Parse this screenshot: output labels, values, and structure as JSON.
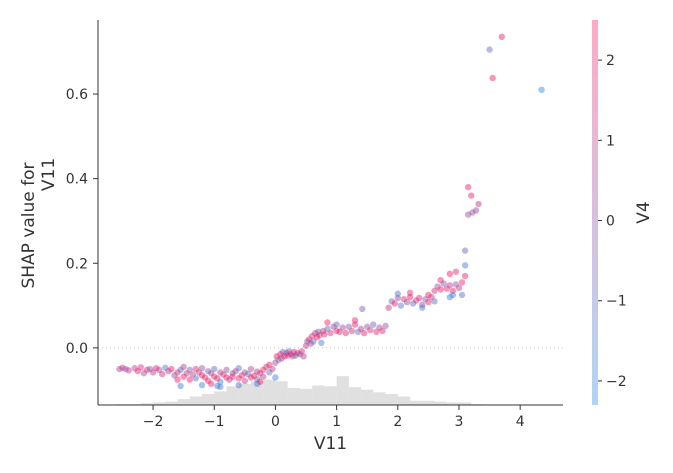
{
  "chart_data": {
    "type": "scatter",
    "subtype": "shap-dependence",
    "xlabel": "V11",
    "ylabel_lines": [
      "SHAP value for",
      "V11"
    ],
    "color_label": "V4",
    "xlim": [
      -2.9,
      4.7
    ],
    "ylim": [
      -0.135,
      0.775
    ],
    "xticks": [
      -2,
      -1,
      0,
      1,
      2,
      3,
      4
    ],
    "xtick_labels": [
      "−2",
      "−1",
      "0",
      "1",
      "2",
      "3",
      "4"
    ],
    "yticks": [
      0.0,
      0.2,
      0.4,
      0.6
    ],
    "ytick_labels": [
      "0.0",
      "0.2",
      "0.4",
      "0.6"
    ],
    "color_ticks": [
      -2,
      -1,
      0,
      1,
      2
    ],
    "color_tick_labels": [
      "−2",
      "−1",
      "0",
      "1",
      "2"
    ],
    "color_range": [
      -2.3,
      2.5
    ],
    "colors": {
      "low": "#1E88E5",
      "high": "#FF0D57",
      "axis": "#333333",
      "histogram": "#cccccc",
      "zero_line": "#888888"
    },
    "zero_line": {
      "y": 0.0,
      "style": "dotted"
    },
    "histogram": {
      "bin_edges": [
        -2.6,
        -2.4,
        -2.2,
        -2.0,
        -1.8,
        -1.6,
        -1.4,
        -1.2,
        -1.0,
        -0.8,
        -0.6,
        -0.4,
        -0.2,
        0.0,
        0.2,
        0.4,
        0.6,
        0.8,
        1.0,
        1.2,
        1.4,
        1.6,
        1.8,
        2.0,
        2.2,
        2.4,
        2.6,
        2.8,
        3.0,
        3.2,
        3.4
      ],
      "counts": [
        1,
        1,
        2,
        3,
        4,
        7,
        10,
        13,
        16,
        22,
        25,
        28,
        30,
        28,
        20,
        19,
        23,
        22,
        34,
        21,
        18,
        15,
        13,
        10,
        5,
        5,
        4,
        3,
        3,
        1
      ]
    },
    "points": [
      [
        -2.55,
        -0.05,
        0.3
      ],
      [
        -2.5,
        -0.047,
        2.0
      ],
      [
        -2.45,
        -0.05,
        -0.5
      ],
      [
        -2.4,
        -0.053,
        1.2
      ],
      [
        -2.3,
        -0.048,
        0.8
      ],
      [
        -2.25,
        -0.055,
        2.2
      ],
      [
        -2.2,
        -0.046,
        1.5
      ],
      [
        -2.15,
        -0.06,
        0.1
      ],
      [
        -2.1,
        -0.052,
        1.8
      ],
      [
        -2.05,
        -0.05,
        -0.3
      ],
      [
        -2.0,
        -0.058,
        1.0
      ],
      [
        -1.95,
        -0.048,
        2.3
      ],
      [
        -1.9,
        -0.052,
        0.5
      ],
      [
        -1.85,
        -0.062,
        1.7
      ],
      [
        -1.8,
        -0.047,
        -1.2
      ],
      [
        -1.75,
        -0.055,
        0.9
      ],
      [
        -1.7,
        -0.05,
        2.0
      ],
      [
        -1.65,
        -0.065,
        0.2
      ],
      [
        -1.6,
        -0.058,
        1.4
      ],
      [
        -1.55,
        -0.052,
        -0.8
      ],
      [
        -1.5,
        -0.068,
        2.1
      ],
      [
        -1.5,
        -0.045,
        0.6
      ],
      [
        -1.45,
        -0.06,
        1.3
      ],
      [
        -1.4,
        -0.075,
        2.4
      ],
      [
        -1.4,
        -0.052,
        -0.2
      ],
      [
        -1.35,
        -0.063,
        0.7
      ],
      [
        -1.3,
        -0.05,
        1.9
      ],
      [
        -1.3,
        -0.072,
        -1.5
      ],
      [
        -1.25,
        -0.058,
        1.1
      ],
      [
        -1.2,
        -0.065,
        2.2
      ],
      [
        -1.2,
        -0.048,
        0.0
      ],
      [
        -1.15,
        -0.07,
        1.6
      ],
      [
        -1.1,
        -0.055,
        -0.6
      ],
      [
        -1.1,
        -0.078,
        2.3
      ],
      [
        -1.05,
        -0.06,
        0.4
      ],
      [
        -1.0,
        -0.068,
        1.8
      ],
      [
        -1.0,
        -0.05,
        -1.0
      ],
      [
        -0.95,
        -0.072,
        2.0
      ],
      [
        -0.9,
        -0.058,
        0.8
      ],
      [
        -0.9,
        -0.08,
        -1.8
      ],
      [
        -0.85,
        -0.063,
        1.5
      ],
      [
        -0.8,
        -0.07,
        2.4
      ],
      [
        -0.8,
        -0.052,
        0.1
      ],
      [
        -0.75,
        -0.075,
        1.2
      ],
      [
        -0.7,
        -0.06,
        -0.4
      ],
      [
        -0.7,
        -0.068,
        2.1
      ],
      [
        -0.65,
        -0.055,
        0.9
      ],
      [
        -0.6,
        -0.072,
        1.7
      ],
      [
        -0.6,
        -0.048,
        -1.3
      ],
      [
        -0.55,
        -0.065,
        2.2
      ],
      [
        -0.5,
        -0.058,
        0.3
      ],
      [
        -0.5,
        -0.078,
        1.4
      ],
      [
        -0.45,
        -0.062,
        -0.7
      ],
      [
        -0.4,
        -0.07,
        1.9
      ],
      [
        -0.4,
        -0.05,
        0.6
      ],
      [
        -0.35,
        -0.066,
        2.3
      ],
      [
        -0.3,
        -0.056,
        1.0
      ],
      [
        -0.3,
        -0.074,
        -0.1
      ],
      [
        -0.25,
        -0.06,
        1.6
      ],
      [
        -0.2,
        -0.052,
        2.0
      ],
      [
        -0.2,
        -0.068,
        0.5
      ],
      [
        -0.15,
        -0.045,
        1.3
      ],
      [
        -0.1,
        -0.058,
        -0.9
      ],
      [
        -0.1,
        -0.04,
        2.2
      ],
      [
        -0.05,
        -0.05,
        0.8
      ],
      [
        -1.55,
        -0.09,
        -1.6
      ],
      [
        -1.2,
        -0.088,
        -1.7
      ],
      [
        -1.05,
        -0.085,
        2.2
      ],
      [
        -0.95,
        -0.09,
        -1.9
      ],
      [
        -0.9,
        -0.092,
        -1.5
      ],
      [
        -0.6,
        -0.088,
        -1.4
      ],
      [
        -0.3,
        -0.085,
        -2.0
      ],
      [
        0.0,
        -0.07,
        -1.8
      ],
      [
        -1.6,
        -0.075,
        2.4
      ],
      [
        -0.25,
        -0.08,
        2.1
      ],
      [
        0.0,
        -0.035,
        0.5
      ],
      [
        0.02,
        -0.02,
        1.8
      ],
      [
        0.05,
        -0.028,
        -0.6
      ],
      [
        0.08,
        -0.015,
        2.2
      ],
      [
        0.1,
        -0.025,
        0.9
      ],
      [
        0.12,
        -0.01,
        -1.1
      ],
      [
        0.15,
        -0.02,
        1.6
      ],
      [
        0.18,
        -0.012,
        0.2
      ],
      [
        0.2,
        -0.018,
        2.0
      ],
      [
        0.22,
        -0.008,
        -0.4
      ],
      [
        0.25,
        -0.015,
        1.2
      ],
      [
        0.28,
        -0.02,
        0.6
      ],
      [
        0.3,
        -0.01,
        2.3
      ],
      [
        0.33,
        -0.018,
        -0.8
      ],
      [
        0.36,
        -0.012,
        1.5
      ],
      [
        0.4,
        -0.015,
        0.0
      ],
      [
        0.43,
        -0.008,
        1.9
      ],
      [
        0.46,
        -0.02,
        0.7
      ],
      [
        0.5,
        0.005,
        1.4
      ],
      [
        0.52,
        0.015,
        -0.5
      ],
      [
        0.55,
        0.02,
        2.1
      ],
      [
        0.58,
        0.01,
        0.4
      ],
      [
        0.6,
        0.028,
        1.7
      ],
      [
        0.62,
        0.015,
        -1.2
      ],
      [
        0.65,
        0.035,
        1.0
      ],
      [
        0.68,
        0.025,
        2.2
      ],
      [
        0.7,
        0.038,
        -0.2
      ],
      [
        0.72,
        0.03,
        1.5
      ],
      [
        0.75,
        0.012,
        -1.6
      ],
      [
        0.78,
        0.04,
        0.8
      ],
      [
        0.8,
        0.032,
        2.0
      ],
      [
        0.85,
        0.045,
        -0.7
      ],
      [
        0.9,
        0.035,
        1.3
      ],
      [
        0.95,
        0.05,
        0.3
      ],
      [
        1.0,
        0.04,
        2.3
      ],
      [
        1.0,
        0.055,
        -1.0
      ],
      [
        1.05,
        0.038,
        1.6
      ],
      [
        1.1,
        0.048,
        0.6
      ],
      [
        1.15,
        0.035,
        2.1
      ],
      [
        1.2,
        0.05,
        -0.3
      ],
      [
        1.25,
        0.04,
        1.1
      ],
      [
        1.3,
        0.055,
        1.9
      ],
      [
        1.35,
        0.038,
        -0.9
      ],
      [
        1.4,
        0.045,
        0.9
      ],
      [
        1.45,
        0.035,
        2.2
      ],
      [
        1.5,
        0.05,
        0.1
      ],
      [
        1.55,
        0.042,
        1.4
      ],
      [
        1.6,
        0.055,
        -0.6
      ],
      [
        1.65,
        0.038,
        1.8
      ],
      [
        1.7,
        0.048,
        0.5
      ],
      [
        1.75,
        0.04,
        2.0
      ],
      [
        1.8,
        0.052,
        -0.1
      ],
      [
        1.42,
        0.092,
        -0.5
      ],
      [
        1.3,
        0.065,
        2.3
      ],
      [
        0.85,
        0.06,
        2.4
      ],
      [
        1.85,
        0.095,
        1.2
      ],
      [
        1.9,
        0.11,
        -0.4
      ],
      [
        1.95,
        0.105,
        2.1
      ],
      [
        2.0,
        0.118,
        0.7
      ],
      [
        2.05,
        0.1,
        -1.3
      ],
      [
        2.1,
        0.115,
        1.6
      ],
      [
        2.15,
        0.108,
        0.2
      ],
      [
        2.2,
        0.12,
        2.2
      ],
      [
        2.25,
        0.105,
        -0.8
      ],
      [
        2.3,
        0.112,
        1.0
      ],
      [
        2.35,
        0.118,
        1.9
      ],
      [
        2.4,
        0.102,
        0.4
      ],
      [
        2.45,
        0.115,
        -0.5
      ],
      [
        2.5,
        0.108,
        2.0
      ],
      [
        2.55,
        0.12,
        1.3
      ],
      [
        2.6,
        0.11,
        -1.0
      ],
      [
        2.2,
        0.13,
        1.8
      ],
      [
        2.0,
        0.128,
        -1.4
      ],
      [
        2.5,
        0.125,
        2.3
      ],
      [
        2.4,
        0.095,
        -1.6
      ],
      [
        2.6,
        0.135,
        1.5
      ],
      [
        2.65,
        0.145,
        0.3
      ],
      [
        2.7,
        0.138,
        2.2
      ],
      [
        2.75,
        0.152,
        -0.4
      ],
      [
        2.8,
        0.14,
        1.7
      ],
      [
        2.85,
        0.148,
        0.9
      ],
      [
        2.9,
        0.135,
        2.4
      ],
      [
        2.95,
        0.15,
        -0.2
      ],
      [
        3.0,
        0.142,
        1.2
      ],
      [
        3.05,
        0.155,
        2.0
      ],
      [
        2.7,
        0.16,
        1.9
      ],
      [
        2.85,
        0.175,
        2.3
      ],
      [
        2.95,
        0.18,
        1.6
      ],
      [
        3.1,
        0.17,
        2.1
      ],
      [
        2.9,
        0.125,
        -1.8
      ],
      [
        2.85,
        0.12,
        -1.7
      ],
      [
        3.05,
        0.125,
        -1.2
      ],
      [
        3.1,
        0.195,
        -1.5
      ],
      [
        3.1,
        0.23,
        -0.5
      ],
      [
        3.15,
        0.315,
        0.2
      ],
      [
        3.15,
        0.38,
        2.2
      ],
      [
        3.2,
        0.36,
        1.8
      ],
      [
        3.22,
        0.32,
        0.5
      ],
      [
        3.28,
        0.325,
        0.0
      ],
      [
        3.32,
        0.34,
        1.0
      ],
      [
        3.5,
        0.705,
        -1.0
      ],
      [
        3.55,
        0.638,
        2.4
      ],
      [
        3.7,
        0.735,
        2.1
      ],
      [
        4.35,
        0.61,
        -2.2
      ]
    ]
  }
}
